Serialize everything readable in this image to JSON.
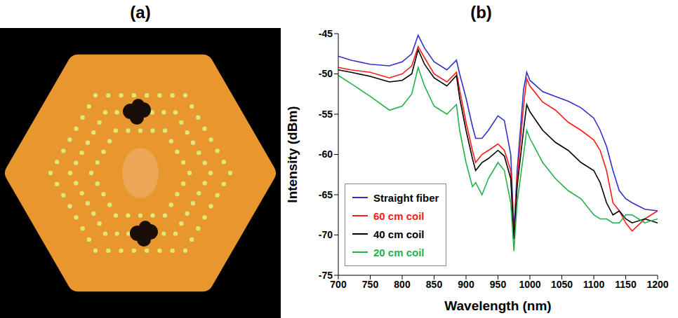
{
  "panel_a": {
    "label": "(a)"
  },
  "chart_data": {
    "type": "line",
    "panel_label": "(b)",
    "x_label": "Wavelength (nm)",
    "y_label": "Intensity (dBm)",
    "x": [
      700,
      720,
      750,
      780,
      800,
      815,
      825,
      835,
      850,
      870,
      885,
      890,
      900,
      910,
      915,
      925,
      935,
      950,
      960,
      970,
      975,
      980,
      990,
      995,
      1000,
      1020,
      1040,
      1060,
      1080,
      1100,
      1110,
      1120,
      1130,
      1140,
      1150,
      1160,
      1180,
      1200
    ],
    "series": [
      {
        "name": "Straight fiber",
        "color": "#3030c8",
        "values": [
          -47.8,
          -48.3,
          -48.8,
          -49,
          -48.5,
          -47.5,
          -45.2,
          -46.8,
          -48.5,
          -49.5,
          -48.3,
          -50,
          -53,
          -56.5,
          -58,
          -58,
          -57,
          -55.2,
          -55.8,
          -60,
          -69.5,
          -62,
          -52,
          -49.8,
          -50.8,
          -52.2,
          -52.8,
          -53.4,
          -54.2,
          -55.5,
          -57,
          -59,
          -62,
          -64.5,
          -65.5,
          -66,
          -66.8,
          -67
        ]
      },
      {
        "name": "60 cm coil",
        "color": "#ff1a1a",
        "values": [
          -49.2,
          -49.5,
          -49.8,
          -50.5,
          -50,
          -49,
          -46.6,
          -48,
          -50,
          -51,
          -49.8,
          -52,
          -56,
          -59.5,
          -61,
          -60,
          -59.5,
          -58.7,
          -59.5,
          -62,
          -70,
          -63,
          -54,
          -50.6,
          -51.5,
          -53.5,
          -54.5,
          -56,
          -57,
          -58.2,
          -59.5,
          -62,
          -66,
          -67,
          -68.5,
          -69.5,
          -68,
          -67
        ]
      },
      {
        "name": "40 cm coil",
        "color": "#000000",
        "values": [
          -49.5,
          -49.8,
          -50.3,
          -51,
          -50.8,
          -50,
          -47,
          -48.8,
          -50.5,
          -51.5,
          -50.2,
          -53,
          -57,
          -60.5,
          -62,
          -61,
          -60.5,
          -59.5,
          -60.2,
          -63,
          -70.5,
          -64,
          -57,
          -53.8,
          -54.7,
          -57,
          -58.5,
          -59.5,
          -61,
          -62,
          -63.5,
          -66,
          -67.5,
          -67,
          -68,
          -68.5,
          -68,
          -68.5
        ]
      },
      {
        "name": "20 cm coil",
        "color": "#22b14c",
        "values": [
          -50.2,
          -51.2,
          -52.8,
          -54.5,
          -54,
          -52.5,
          -49.2,
          -51.5,
          -54,
          -55,
          -53.8,
          -57,
          -61,
          -64,
          -63.5,
          -65,
          -63,
          -61,
          -62,
          -66,
          -72,
          -66,
          -60,
          -57,
          -58,
          -61,
          -63,
          -64.5,
          -65.5,
          -67.5,
          -68,
          -68,
          -68.5,
          -68.5,
          -67.5,
          -67.5,
          -68.5,
          -68
        ]
      }
    ],
    "xlim": [
      700,
      1200
    ],
    "xticks": [
      700,
      750,
      800,
      850,
      900,
      950,
      1000,
      1050,
      1100,
      1150,
      1200
    ],
    "ylim": [
      -75,
      -45
    ],
    "yticks": [
      -75,
      -70,
      -65,
      -60,
      -55,
      -50,
      -45
    ],
    "grid": false,
    "legend": "lower left"
  }
}
